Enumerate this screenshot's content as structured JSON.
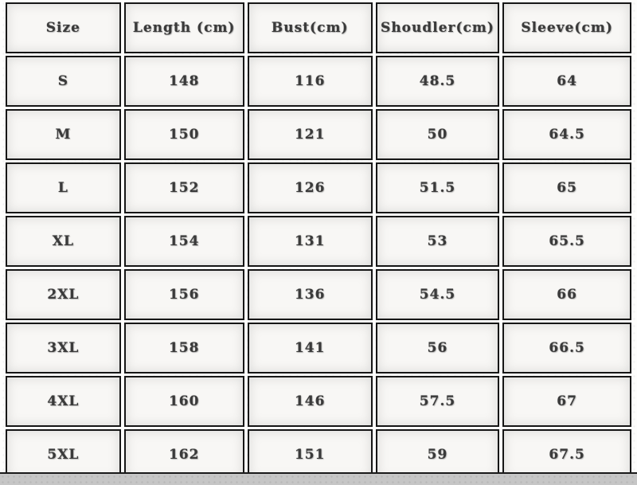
{
  "chart_data": {
    "type": "table",
    "columns": [
      "Size",
      "Length (cm)",
      "Bust(cm)",
      "Shoudler(cm)",
      "Sleeve(cm)"
    ],
    "rows": [
      [
        "S",
        "148",
        "116",
        "48.5",
        "64"
      ],
      [
        "M",
        "150",
        "121",
        "50",
        "64.5"
      ],
      [
        "L",
        "152",
        "126",
        "51.5",
        "65"
      ],
      [
        "XL",
        "154",
        "131",
        "53",
        "65.5"
      ],
      [
        "2XL",
        "156",
        "136",
        "54.5",
        "66"
      ],
      [
        "3XL",
        "158",
        "141",
        "56",
        "66.5"
      ],
      [
        "4XL",
        "160",
        "146",
        "57.5",
        "67"
      ],
      [
        "5XL",
        "162",
        "151",
        "59",
        "67.5"
      ]
    ]
  },
  "colors": {
    "cell_background": "#f8f7f5",
    "border": "#161616",
    "text": "#3a3a3a",
    "bottom_strip": "#c6c6c6",
    "page_background": "#fdfdfc"
  }
}
